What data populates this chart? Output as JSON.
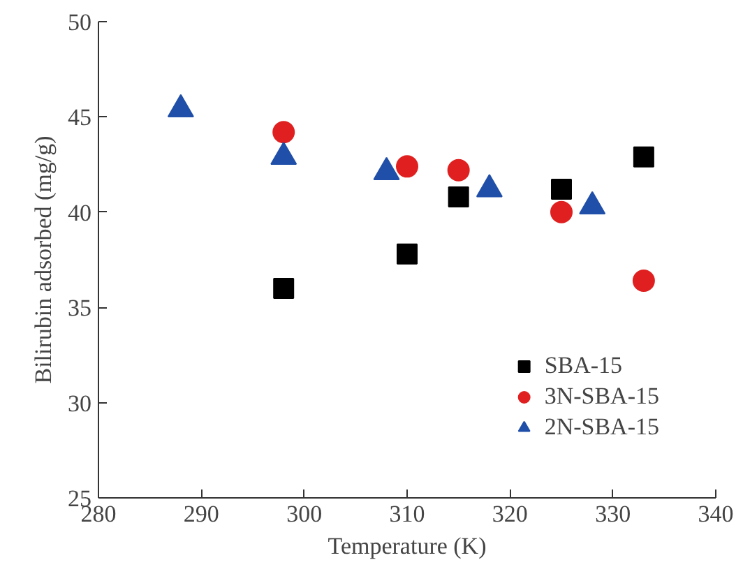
{
  "chart_data": {
    "type": "scatter",
    "xlabel": "Temperature (K)",
    "ylabel": "Bilirubin adsorbed (mg/g)",
    "xlim": [
      280,
      340
    ],
    "xticks": [
      280,
      290,
      300,
      310,
      320,
      330,
      340
    ],
    "ylim": [
      25,
      50
    ],
    "yticks": [
      25,
      30,
      35,
      40,
      45,
      50
    ],
    "grid": false,
    "legend": "bottom right",
    "series": [
      {
        "name": "SBA-15",
        "color": "#000000",
        "marker": "square",
        "x": [
          298,
          310,
          315,
          325,
          333
        ],
        "values": [
          36.0,
          37.8,
          40.8,
          41.2,
          42.9
        ]
      },
      {
        "name": "3N-SBA-15",
        "color": "#e02020",
        "marker": "circle",
        "x": [
          298,
          310,
          315,
          325,
          333
        ],
        "values": [
          44.2,
          42.4,
          42.2,
          40.0,
          36.4
        ]
      },
      {
        "name": "2N-SBA-15",
        "color": "#1f4fa8",
        "marker": "triangle",
        "x": [
          288,
          298,
          308,
          318,
          328
        ],
        "values": [
          45.4,
          42.9,
          42.1,
          41.2,
          40.3
        ]
      }
    ]
  }
}
